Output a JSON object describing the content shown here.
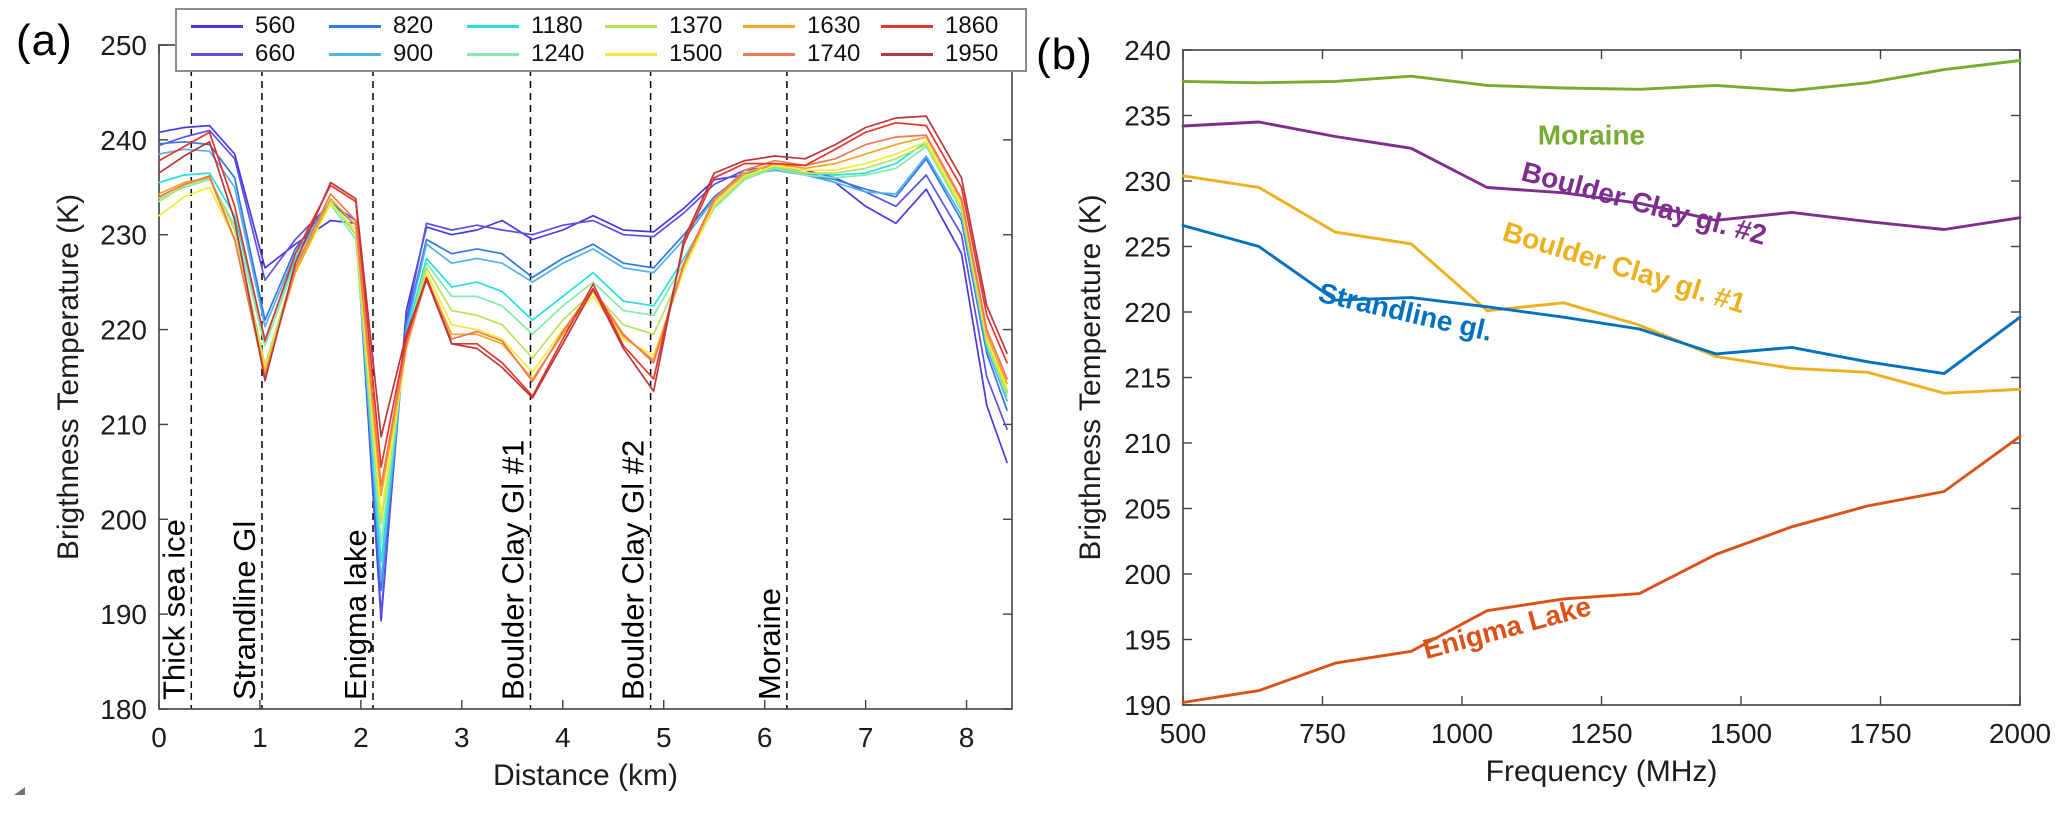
{
  "figure": {
    "background": "#ffffff"
  },
  "chart_data": [
    {
      "type": "line",
      "panel_label": "(a)",
      "xlabel": "Distance (km)",
      "ylabel": "Brigthness Temperature (K)",
      "xlim": [
        0,
        8.45
      ],
      "ylim": [
        180,
        250
      ],
      "xticks": [
        0,
        1,
        2,
        3,
        4,
        5,
        6,
        7,
        8
      ],
      "yticks": [
        180,
        190,
        200,
        210,
        220,
        230,
        240,
        250
      ],
      "grid": false,
      "legend_position": "top",
      "x": [
        0,
        0.25,
        0.5,
        0.75,
        1.05,
        1.35,
        1.7,
        1.95,
        2.2,
        2.45,
        2.65,
        2.9,
        3.15,
        3.4,
        3.7,
        4.0,
        4.3,
        4.6,
        4.9,
        5.2,
        5.5,
        5.8,
        6.1,
        6.4,
        6.7,
        7.0,
        7.3,
        7.6,
        7.95,
        8.2,
        8.4
      ],
      "annotations": [
        {
          "label": "Thick sea ice",
          "x": 0.32
        },
        {
          "label": "Strandline Gl",
          "x": 1.02
        },
        {
          "label": "Enigma lake",
          "x": 2.12
        },
        {
          "label": "Boulder Clay Gl #1",
          "x": 3.68
        },
        {
          "label": "Boulder Clay Gl #2",
          "x": 4.87
        },
        {
          "label": "Moraine",
          "x": 6.22
        }
      ],
      "series": [
        {
          "name": "560",
          "color": "#473be0",
          "values": [
            240.8,
            241.3,
            241.5,
            238.5,
            226.5,
            229.0,
            231.5,
            231.2,
            189.3,
            222.0,
            230.8,
            230.0,
            230.5,
            231.5,
            229.5,
            230.5,
            232.0,
            230.5,
            230.3,
            232.8,
            235.8,
            236.3,
            236.8,
            236.5,
            235.5,
            233.0,
            231.2,
            234.8,
            228.0,
            212.0,
            206.0
          ]
        },
        {
          "name": "660",
          "color": "#5a50ea",
          "values": [
            239.4,
            240.3,
            241.0,
            238.0,
            225.2,
            229.5,
            233.3,
            231.5,
            190.0,
            221.0,
            231.2,
            230.5,
            231.0,
            230.5,
            230.0,
            231.0,
            231.5,
            230.0,
            229.8,
            232.3,
            235.3,
            236.8,
            237.2,
            236.8,
            236.0,
            234.5,
            233.0,
            236.3,
            230.0,
            215.0,
            209.5
          ]
        },
        {
          "name": "820",
          "color": "#3377e3",
          "values": [
            239.6,
            239.8,
            239.5,
            236.0,
            221.0,
            228.5,
            233.5,
            231.0,
            192.5,
            220.5,
            229.5,
            228.0,
            228.5,
            228.0,
            225.5,
            227.5,
            229.0,
            227.0,
            226.5,
            230.0,
            234.0,
            236.5,
            237.0,
            236.5,
            235.8,
            234.8,
            234.0,
            238.0,
            231.5,
            217.5,
            211.5
          ]
        },
        {
          "name": "900",
          "color": "#51b2ea",
          "values": [
            238.5,
            239.0,
            238.8,
            235.0,
            220.3,
            228.0,
            233.3,
            230.5,
            193.5,
            220.0,
            229.0,
            227.0,
            227.5,
            227.0,
            225.0,
            227.0,
            228.5,
            226.5,
            226.0,
            229.5,
            233.8,
            236.3,
            236.8,
            236.3,
            235.5,
            234.5,
            234.3,
            238.3,
            232.0,
            218.0,
            212.5
          ]
        },
        {
          "name": "1180",
          "color": "#2bdede",
          "values": [
            235.5,
            236.3,
            236.5,
            232.0,
            219.0,
            227.5,
            233.5,
            230.0,
            195.5,
            219.5,
            227.5,
            224.5,
            225.0,
            224.0,
            221.0,
            223.5,
            226.0,
            223.0,
            222.5,
            227.5,
            233.0,
            236.0,
            237.3,
            236.5,
            236.3,
            236.5,
            237.5,
            239.8,
            233.0,
            219.0,
            213.5
          ]
        },
        {
          "name": "1240",
          "color": "#83ecae",
          "values": [
            233.8,
            235.0,
            235.8,
            231.0,
            218.3,
            227.0,
            233.2,
            229.5,
            197.5,
            219.0,
            227.0,
            223.5,
            223.5,
            222.5,
            219.5,
            222.5,
            225.0,
            222.0,
            221.5,
            227.0,
            232.8,
            235.8,
            237.0,
            236.3,
            236.0,
            236.3,
            237.0,
            239.3,
            232.5,
            218.5,
            213.0
          ]
        },
        {
          "name": "1370",
          "color": "#b9e356",
          "values": [
            233.5,
            235.2,
            236.0,
            230.5,
            216.3,
            226.5,
            233.5,
            230.0,
            199.5,
            218.5,
            226.5,
            222.0,
            221.5,
            220.5,
            217.0,
            221.0,
            224.0,
            220.5,
            219.5,
            226.5,
            233.0,
            236.0,
            237.2,
            236.5,
            236.5,
            237.0,
            238.0,
            239.5,
            232.8,
            218.8,
            213.3
          ]
        },
        {
          "name": "1500",
          "color": "#f1ec3a",
          "values": [
            232.0,
            234.0,
            235.0,
            229.5,
            215.8,
            226.0,
            233.3,
            230.5,
            200.5,
            218.0,
            226.0,
            220.5,
            220.0,
            219.0,
            215.5,
            220.0,
            223.5,
            219.0,
            217.3,
            226.3,
            233.2,
            236.2,
            237.3,
            236.8,
            236.8,
            237.5,
            238.5,
            239.8,
            233.0,
            219.0,
            213.8
          ]
        },
        {
          "name": "1630",
          "color": "#f5a623",
          "values": [
            234.3,
            235.5,
            236.0,
            229.5,
            215.5,
            226.0,
            233.8,
            231.0,
            202.5,
            218.0,
            225.5,
            219.5,
            219.5,
            218.5,
            214.8,
            219.5,
            224.0,
            219.3,
            216.8,
            226.8,
            233.5,
            236.5,
            237.5,
            237.0,
            237.5,
            238.5,
            239.5,
            240.3,
            233.5,
            219.5,
            214.3
          ]
        },
        {
          "name": "1740",
          "color": "#f07855",
          "values": [
            234.0,
            235.3,
            236.2,
            229.5,
            215.0,
            226.5,
            234.3,
            231.5,
            203.5,
            218.5,
            225.2,
            219.0,
            219.8,
            218.8,
            214.5,
            219.8,
            224.3,
            219.5,
            216.5,
            227.0,
            233.8,
            236.8,
            237.8,
            237.3,
            238.0,
            239.5,
            240.3,
            240.5,
            233.8,
            220.0,
            214.8
          ]
        },
        {
          "name": "1860",
          "color": "#e8342a",
          "values": [
            237.8,
            239.3,
            240.8,
            233.0,
            218.8,
            228.0,
            235.2,
            233.5,
            205.5,
            219.0,
            225.5,
            218.5,
            218.5,
            216.5,
            213.0,
            219.0,
            224.8,
            218.3,
            214.8,
            229.0,
            236.0,
            237.5,
            237.5,
            237.3,
            239.0,
            240.8,
            241.8,
            241.5,
            235.0,
            221.5,
            216.5
          ]
        },
        {
          "name": "1950",
          "color": "#b8383c",
          "values": [
            236.5,
            238.3,
            239.8,
            231.5,
            214.6,
            227.0,
            235.5,
            233.8,
            208.7,
            219.5,
            225.3,
            218.5,
            218.0,
            216.0,
            212.8,
            218.5,
            224.3,
            218.0,
            213.5,
            229.5,
            236.5,
            237.8,
            238.3,
            238.0,
            239.5,
            241.3,
            242.3,
            242.5,
            236.0,
            222.5,
            217.5
          ]
        }
      ]
    },
    {
      "type": "line",
      "panel_label": "(b)",
      "xlabel": "Frequency (MHz)",
      "ylabel": "Brigthness Temperature (K)",
      "xlim": [
        500,
        2000
      ],
      "ylim": [
        190,
        240
      ],
      "xticks": [
        500,
        750,
        1000,
        1250,
        1500,
        1750,
        2000
      ],
      "yticks": [
        190,
        195,
        200,
        205,
        210,
        215,
        220,
        225,
        230,
        235,
        240
      ],
      "grid": false,
      "legend_position": "inline-labels",
      "x": [
        500,
        636,
        773,
        909,
        1045,
        1182,
        1318,
        1455,
        1591,
        1727,
        1864,
        2000
      ],
      "series": [
        {
          "name": "Moraine",
          "color": "#77ac30",
          "label_at": {
            "x": 1232,
            "y": 232.8,
            "rot": 0
          },
          "values": [
            237.6,
            237.5,
            237.6,
            238.0,
            237.3,
            237.1,
            237.0,
            237.3,
            236.9,
            237.5,
            238.5,
            239.2
          ]
        },
        {
          "name": "Boulder Clay gl. #2",
          "color": "#7e2f8e",
          "label_at": {
            "x": 1322,
            "y": 227.6,
            "rot": 15
          },
          "values": [
            234.2,
            234.5,
            233.4,
            232.5,
            229.5,
            229.1,
            228.3,
            227.0,
            227.6,
            226.9,
            226.3,
            227.2
          ]
        },
        {
          "name": "Boulder Clay gl. #1",
          "color": "#edb120",
          "label_at": {
            "x": 1286,
            "y": 222.7,
            "rot": 17
          },
          "values": [
            230.4,
            229.5,
            226.1,
            225.2,
            220.1,
            220.7,
            219.0,
            216.6,
            215.7,
            215.4,
            213.8,
            214.1
          ]
        },
        {
          "name": "Strandline gl.",
          "color": "#0072bd",
          "label_at": {
            "x": 895,
            "y": 219.3,
            "rot": 13
          },
          "values": [
            226.6,
            225.0,
            220.9,
            221.1,
            220.4,
            219.6,
            218.7,
            216.8,
            217.3,
            216.2,
            215.3,
            219.6
          ]
        },
        {
          "name": "Enigma Lake",
          "color": "#d95319",
          "label_at": {
            "x": 1085,
            "y": 195.2,
            "rot": -15
          },
          "values": [
            190.2,
            191.1,
            193.2,
            194.1,
            197.2,
            198.1,
            198.5,
            201.5,
            203.6,
            205.2,
            206.3,
            210.5
          ]
        }
      ]
    }
  ]
}
